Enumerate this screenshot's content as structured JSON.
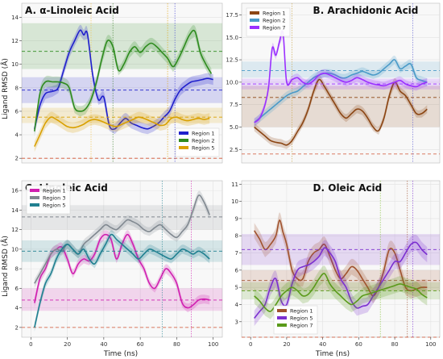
{
  "figure": {
    "shared_xlabel": "Time (ns)",
    "shared_ylabel": "Ligand RMSD (Å)"
  },
  "chart_data": [
    {
      "type": "line",
      "title": "A. α-Linoleic Acid",
      "xlabel": "",
      "ylabel": "Ligand RMSD (Å)",
      "xlim": [
        -5,
        105
      ],
      "ylim": [
        1.6,
        15.2
      ],
      "xticks": [],
      "yticks": [
        2,
        4,
        6,
        8,
        10,
        12,
        14
      ],
      "grid": true,
      "legend_position": "bottom-right",
      "floor_line": 2,
      "series": [
        {
          "name": "Region 1",
          "color": "#1f1fcc",
          "x": [
            2,
            5,
            8,
            12,
            15,
            18,
            21,
            24,
            27,
            29,
            31,
            34,
            37,
            40,
            43,
            46,
            49,
            52,
            55,
            58,
            61,
            64,
            67,
            70,
            73,
            76,
            79,
            82,
            85,
            88,
            91,
            94,
            97,
            100
          ],
          "y": [
            4.5,
            6.5,
            7.5,
            7.7,
            8.0,
            9.5,
            11.0,
            12.0,
            12.9,
            12.5,
            12.6,
            9.0,
            7.0,
            7.2,
            4.8,
            4.5,
            5.0,
            5.4,
            5.0,
            4.8,
            4.6,
            4.5,
            4.7,
            5.0,
            5.5,
            6.0,
            7.0,
            7.8,
            8.2,
            8.5,
            8.6,
            8.7,
            8.8,
            8.7
          ],
          "mean": 7.8,
          "band": [
            6.7,
            8.9
          ]
        },
        {
          "name": "Region 2",
          "color": "#2e8b1e",
          "x": [
            2,
            5,
            8,
            12,
            15,
            18,
            21,
            24,
            27,
            30,
            33,
            36,
            39,
            42,
            45,
            48,
            51,
            54,
            57,
            60,
            63,
            66,
            69,
            72,
            75,
            78,
            81,
            84,
            87,
            90,
            93,
            96,
            99
          ],
          "y": [
            4.3,
            7.5,
            8.5,
            8.5,
            8.5,
            8.4,
            8.0,
            6.3,
            6.0,
            6.2,
            7.0,
            8.5,
            10.5,
            12.0,
            11.5,
            9.5,
            10.0,
            11.0,
            11.5,
            11.0,
            11.5,
            11.8,
            11.5,
            11.0,
            10.5,
            9.8,
            10.5,
            11.5,
            12.5,
            12.8,
            11.0,
            10.0,
            9.2
          ],
          "mean": 11.1,
          "band": [
            9.6,
            13.5
          ]
        },
        {
          "name": "Region 5",
          "color": "#d9a000",
          "x": [
            2,
            5,
            8,
            11,
            14,
            17,
            20,
            23,
            26,
            29,
            32,
            35,
            38,
            41,
            44,
            47,
            50,
            53,
            56,
            59,
            62,
            65,
            68,
            71,
            74,
            77,
            80,
            83,
            86,
            89,
            92,
            95,
            98
          ],
          "y": [
            3.0,
            4.0,
            5.0,
            5.5,
            5.3,
            5.0,
            4.7,
            4.6,
            4.7,
            4.9,
            5.2,
            5.3,
            5.2,
            5.0,
            4.8,
            4.7,
            4.9,
            5.1,
            5.3,
            5.5,
            5.4,
            5.2,
            5.0,
            4.8,
            4.9,
            5.4,
            5.5,
            5.3,
            5.2,
            5.3,
            5.4,
            5.3,
            5.4
          ],
          "mean": 5.5,
          "band": [
            5.0,
            6.3
          ]
        }
      ],
      "vlines": [
        {
          "x": 33,
          "color": "#f0c040"
        },
        {
          "x": 45,
          "color": "#3b7d2a"
        },
        {
          "x": 75,
          "color": "#e0a000"
        },
        {
          "x": 79,
          "color": "#3b3bd0"
        }
      ]
    },
    {
      "type": "line",
      "title": "B. Arachidonic Acid",
      "xlabel": "",
      "ylabel": "",
      "xlim": [
        -5,
        105
      ],
      "ylim": [
        1.0,
        18.8
      ],
      "xticks": [],
      "yticks": [
        2.5,
        5.0,
        7.5,
        10.0,
        12.5,
        15.0,
        17.5
      ],
      "ytick_labels": [
        "2.5",
        "5.0",
        "7.5",
        "10.0",
        "12.5",
        "15.0",
        "17.5"
      ],
      "grid": true,
      "legend_position": "top-left",
      "floor_line": 2.0,
      "series": [
        {
          "name": "Region 1",
          "color": "#8b4513",
          "x": [
            2,
            5,
            8,
            11,
            14,
            17,
            20,
            23,
            26,
            29,
            32,
            35,
            38,
            41,
            44,
            47,
            50,
            53,
            56,
            59,
            62,
            65,
            68,
            71,
            74,
            77,
            80,
            83,
            86,
            89,
            92,
            95,
            98
          ],
          "y": [
            5.0,
            4.5,
            4.0,
            3.5,
            3.3,
            3.2,
            3.0,
            3.5,
            4.5,
            5.5,
            7.0,
            9.0,
            10.3,
            9.5,
            8.5,
            7.5,
            6.5,
            6.0,
            6.5,
            7.0,
            6.8,
            6.0,
            5.0,
            4.6,
            6.0,
            8.5,
            10.0,
            9.0,
            8.5,
            7.5,
            6.5,
            6.5,
            7.0
          ],
          "mean": 8.3,
          "band": [
            5.0,
            9.6
          ]
        },
        {
          "name": "Region 2",
          "color": "#4a9ac8",
          "x": [
            2,
            5,
            8,
            11,
            14,
            17,
            20,
            23,
            26,
            29,
            32,
            35,
            38,
            41,
            44,
            47,
            50,
            53,
            56,
            59,
            62,
            65,
            68,
            71,
            74,
            77,
            80,
            83,
            86,
            89,
            92,
            95,
            98
          ],
          "y": [
            5.5,
            6.0,
            6.5,
            7.0,
            7.5,
            8.0,
            8.5,
            8.8,
            9.0,
            9.5,
            10.0,
            10.5,
            10.8,
            11.0,
            11.0,
            10.8,
            10.5,
            10.5,
            10.8,
            11.0,
            11.2,
            11.0,
            10.8,
            11.0,
            11.5,
            12.0,
            12.5,
            11.5,
            11.8,
            12.0,
            10.5,
            10.2,
            10.0
          ],
          "mean": 11.3,
          "band": [
            10.5,
            12.3
          ]
        },
        {
          "name": "Region 7",
          "color": "#9b30ff",
          "x": [
            2,
            5,
            8,
            10,
            12,
            14,
            16,
            18,
            20,
            23,
            26,
            29,
            32,
            35,
            38,
            41,
            44,
            47,
            50,
            53,
            56,
            59,
            62,
            65,
            68,
            71,
            74,
            77,
            80,
            83,
            86,
            89,
            92,
            95,
            98
          ],
          "y": [
            5.5,
            6.0,
            7.5,
            9.5,
            13.8,
            13.0,
            14.5,
            15.5,
            10.0,
            10.3,
            10.5,
            10.0,
            9.8,
            10.2,
            10.8,
            11.0,
            10.8,
            10.5,
            10.2,
            10.0,
            10.2,
            10.5,
            10.3,
            10.0,
            9.8,
            9.7,
            9.6,
            9.8,
            10.0,
            10.2,
            9.8,
            9.6,
            9.5,
            9.8,
            10.0
          ],
          "mean": 9.8,
          "band": [
            9.2,
            10.4
          ]
        }
      ],
      "vlines": [
        {
          "x": 23,
          "color": "#c8a040"
        },
        {
          "x": 90,
          "color": "#5a5ad0"
        }
      ]
    },
    {
      "type": "line",
      "title": "C. Linoleic Acid",
      "xlabel": "Time (ns)",
      "ylabel": "Ligand RMSD (Å)",
      "xlim": [
        -5,
        105
      ],
      "ylim": [
        1.0,
        17.0
      ],
      "xticks": [
        0,
        20,
        40,
        60,
        80,
        100
      ],
      "yticks": [
        2,
        4,
        6,
        8,
        10,
        12,
        14,
        16
      ],
      "grid": true,
      "legend_position": "top-left",
      "floor_line": 2,
      "series": [
        {
          "name": "Region 1",
          "color": "#d020b0",
          "x": [
            2,
            5,
            8,
            11,
            14,
            17,
            20,
            23,
            26,
            29,
            32,
            35,
            38,
            41,
            44,
            47,
            50,
            53,
            56,
            59,
            62,
            65,
            68,
            71,
            74,
            77,
            80,
            83,
            86,
            89,
            92,
            95,
            98
          ],
          "y": [
            4.5,
            7.0,
            8.0,
            9.5,
            10.0,
            10.2,
            9.0,
            7.5,
            8.5,
            9.0,
            8.8,
            9.5,
            11.0,
            11.5,
            11.0,
            9.0,
            10.5,
            11.5,
            10.5,
            9.0,
            8.0,
            6.5,
            6.0,
            7.0,
            8.0,
            7.5,
            6.5,
            4.5,
            4.0,
            4.3,
            4.8,
            4.9,
            4.8
          ],
          "mean": 4.8,
          "band": [
            3.7,
            6.0
          ]
        },
        {
          "name": "Region 3",
          "color": "#808890",
          "x": [
            2,
            5,
            8,
            11,
            14,
            17,
            20,
            23,
            26,
            29,
            32,
            35,
            38,
            41,
            44,
            47,
            50,
            53,
            56,
            59,
            62,
            65,
            68,
            71,
            74,
            77,
            80,
            83,
            86,
            89,
            92,
            95,
            98
          ],
          "y": [
            6.5,
            7.5,
            8.5,
            9.5,
            10.0,
            9.8,
            10.5,
            10.0,
            9.5,
            10.5,
            11.0,
            11.5,
            12.0,
            12.5,
            12.2,
            12.0,
            12.5,
            13.0,
            12.8,
            12.5,
            12.0,
            11.8,
            12.2,
            12.5,
            12.0,
            11.5,
            11.2,
            11.8,
            12.5,
            14.0,
            15.5,
            14.8,
            13.5
          ],
          "mean": 13.3,
          "band": [
            12.0,
            14.5
          ]
        },
        {
          "name": "Region 5",
          "color": "#208090",
          "x": [
            2,
            5,
            8,
            11,
            14,
            17,
            20,
            23,
            26,
            29,
            32,
            35,
            38,
            41,
            44,
            47,
            50,
            53,
            56,
            59,
            62,
            65,
            68,
            71,
            74,
            77,
            80,
            83,
            86,
            89,
            92,
            95,
            98
          ],
          "y": [
            2.0,
            4.5,
            6.5,
            7.5,
            9.0,
            10.0,
            10.5,
            10.0,
            9.5,
            10.0,
            9.0,
            8.5,
            9.5,
            10.5,
            11.5,
            11.0,
            10.5,
            10.0,
            9.5,
            9.0,
            9.5,
            10.0,
            9.8,
            9.5,
            9.2,
            9.0,
            9.5,
            10.0,
            9.8,
            9.5,
            9.8,
            9.5,
            9.0
          ],
          "mean": 9.8,
          "band": [
            8.7,
            10.9
          ]
        }
      ],
      "vlines": [
        {
          "x": 72,
          "color": "#208090"
        },
        {
          "x": 88,
          "color": "#d020b0"
        }
      ]
    },
    {
      "type": "line",
      "title": "D. Oleic Acid",
      "xlabel": "Time (ns)",
      "ylabel": "",
      "xlim": [
        -5,
        105
      ],
      "ylim": [
        2.1,
        11.2
      ],
      "xticks": [
        0,
        20,
        40,
        60,
        80,
        100
      ],
      "yticks": [
        3,
        4,
        5,
        6,
        7,
        8,
        9,
        10,
        11
      ],
      "grid": true,
      "legend_position": "bottom-left",
      "floor_line": 2.1,
      "series": [
        {
          "name": "Region 1",
          "color": "#a0522d",
          "x": [
            2,
            5,
            8,
            11,
            14,
            16,
            18,
            20,
            23,
            26,
            29,
            32,
            35,
            38,
            41,
            44,
            47,
            50,
            53,
            56,
            59,
            62,
            65,
            68,
            71,
            74,
            77,
            80,
            83,
            86,
            89,
            92,
            95,
            98
          ],
          "y": [
            8.3,
            7.8,
            7.2,
            7.5,
            8.0,
            8.9,
            8.2,
            7.5,
            6.0,
            5.5,
            5.5,
            6.5,
            7.0,
            7.2,
            7.5,
            6.8,
            6.0,
            5.5,
            5.8,
            6.2,
            6.0,
            5.5,
            5.0,
            4.5,
            5.0,
            6.0,
            7.2,
            7.0,
            6.0,
            5.0,
            4.8,
            4.9,
            5.0,
            5.0
          ],
          "mean": 5.4,
          "band": [
            4.8,
            6.0
          ]
        },
        {
          "name": "Region 5",
          "color": "#7b2fd0",
          "x": [
            2,
            5,
            8,
            11,
            14,
            17,
            20,
            23,
            26,
            29,
            32,
            35,
            38,
            41,
            44,
            47,
            50,
            53,
            56,
            59,
            62,
            65,
            68,
            71,
            74,
            77,
            80,
            83,
            86,
            89,
            92,
            95,
            98
          ],
          "y": [
            3.2,
            3.6,
            4.0,
            5.0,
            5.5,
            4.2,
            4.0,
            5.2,
            6.0,
            6.2,
            6.3,
            6.5,
            6.8,
            7.3,
            7.0,
            6.5,
            5.5,
            5.0,
            4.2,
            3.8,
            3.9,
            4.0,
            4.5,
            5.0,
            5.5,
            6.0,
            6.5,
            6.5,
            7.0,
            7.5,
            7.6,
            7.2,
            6.9
          ],
          "mean": 7.2,
          "band": [
            6.3,
            8.1
          ]
        },
        {
          "name": "Region 7",
          "color": "#5a9a1a",
          "x": [
            2,
            5,
            8,
            11,
            14,
            17,
            20,
            23,
            26,
            29,
            32,
            35,
            38,
            41,
            44,
            47,
            50,
            53,
            56,
            59,
            62,
            65,
            68,
            71,
            74,
            77,
            80,
            83,
            86,
            89,
            92,
            95,
            98
          ],
          "y": [
            4.5,
            4.2,
            3.8,
            3.6,
            4.0,
            4.5,
            4.8,
            5.0,
            4.8,
            4.5,
            4.6,
            5.0,
            5.5,
            5.8,
            5.2,
            4.8,
            4.5,
            4.2,
            4.0,
            4.2,
            4.5,
            4.6,
            4.7,
            4.8,
            4.9,
            5.0,
            5.1,
            5.2,
            5.1,
            5.0,
            4.9,
            4.6,
            4.4
          ],
          "mean": 4.8,
          "band": [
            4.3,
            5.3
          ]
        }
      ],
      "vlines": [
        {
          "x": 72,
          "color": "#80c030"
        },
        {
          "x": 87,
          "color": "#a0522d"
        },
        {
          "x": 90,
          "color": "#7b2fd0"
        }
      ]
    }
  ]
}
